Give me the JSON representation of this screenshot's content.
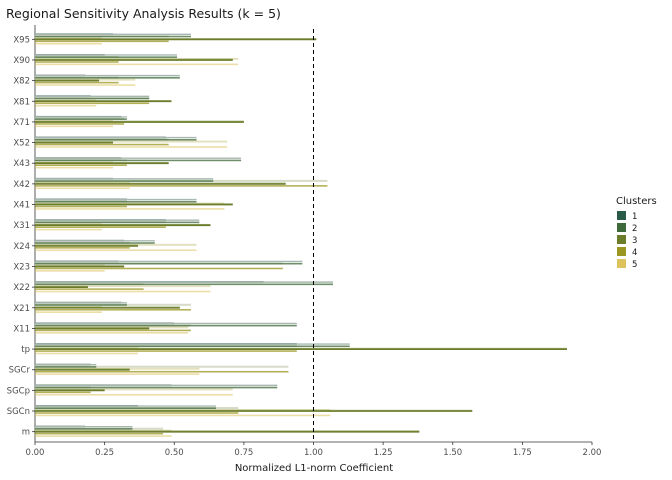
{
  "chart_data": {
    "type": "bar",
    "orientation": "horizontal",
    "title": "Regional Sensitivity Analysis Results (k = 5)",
    "xlabel": "Normalized L1-norm Coefficient",
    "ylabel": "",
    "xlim": [
      0,
      2.0
    ],
    "x_ticks": [
      0.0,
      0.25,
      0.5,
      0.75,
      1.0,
      1.25,
      1.5,
      1.75,
      2.0
    ],
    "x_tick_labels": [
      "0.00",
      "0.25",
      "0.50",
      "0.75",
      "1.00",
      "1.25",
      "1.50",
      "1.75",
      "2.00"
    ],
    "reference_line": 1.0,
    "grid": false,
    "legend_position": "right",
    "legend_title": "Clusters",
    "categories": [
      "X95",
      "X90",
      "X82",
      "X81",
      "X71",
      "X52",
      "X43",
      "X42",
      "X41",
      "X31",
      "X24",
      "X23",
      "X22",
      "X21",
      "X11",
      "tp",
      "SGCr",
      "SGCp",
      "SGCn",
      "m"
    ],
    "series": [
      {
        "name": "1",
        "color": "#2a5a48",
        "values": [
          0.28,
          0.25,
          0.18,
          0.2,
          0.31,
          0.47,
          0.31,
          0.28,
          0.33,
          0.47,
          0.32,
          0.3,
          0.82,
          0.31,
          0.5,
          0.94,
          0.2,
          0.49,
          0.37,
          0.18
        ]
      },
      {
        "name": "2",
        "color": "#3f6a3a",
        "values": [
          0.56,
          0.51,
          0.52,
          0.41,
          0.33,
          0.58,
          0.74,
          0.64,
          0.58,
          0.59,
          0.43,
          0.96,
          1.07,
          0.33,
          0.94,
          1.13,
          0.22,
          0.87,
          0.65,
          0.35
        ]
      },
      {
        "name": "3",
        "color": "#6b7d2a",
        "values": [
          1.01,
          0.71,
          0.23,
          0.49,
          0.75,
          0.28,
          0.48,
          0.9,
          0.71,
          0.63,
          0.37,
          0.32,
          0.19,
          0.52,
          0.41,
          1.91,
          0.34,
          0.25,
          1.57,
          1.38
        ]
      },
      {
        "name": "4",
        "color": "#9b9620",
        "values": [
          0.48,
          0.3,
          0.3,
          0.41,
          0.32,
          0.48,
          0.33,
          1.05,
          0.33,
          0.47,
          0.34,
          0.89,
          0.39,
          0.56,
          0.56,
          0.94,
          0.91,
          0.2,
          0.73,
          0.46
        ]
      },
      {
        "name": "5",
        "color": "#dcc35c",
        "values": [
          0.24,
          0.73,
          0.36,
          0.22,
          0.28,
          0.69,
          0.28,
          0.34,
          0.68,
          0.24,
          0.58,
          0.25,
          0.63,
          0.24,
          0.55,
          0.37,
          0.59,
          0.71,
          1.06,
          0.49
        ]
      }
    ],
    "overlay_color": "#a8b8b0"
  }
}
